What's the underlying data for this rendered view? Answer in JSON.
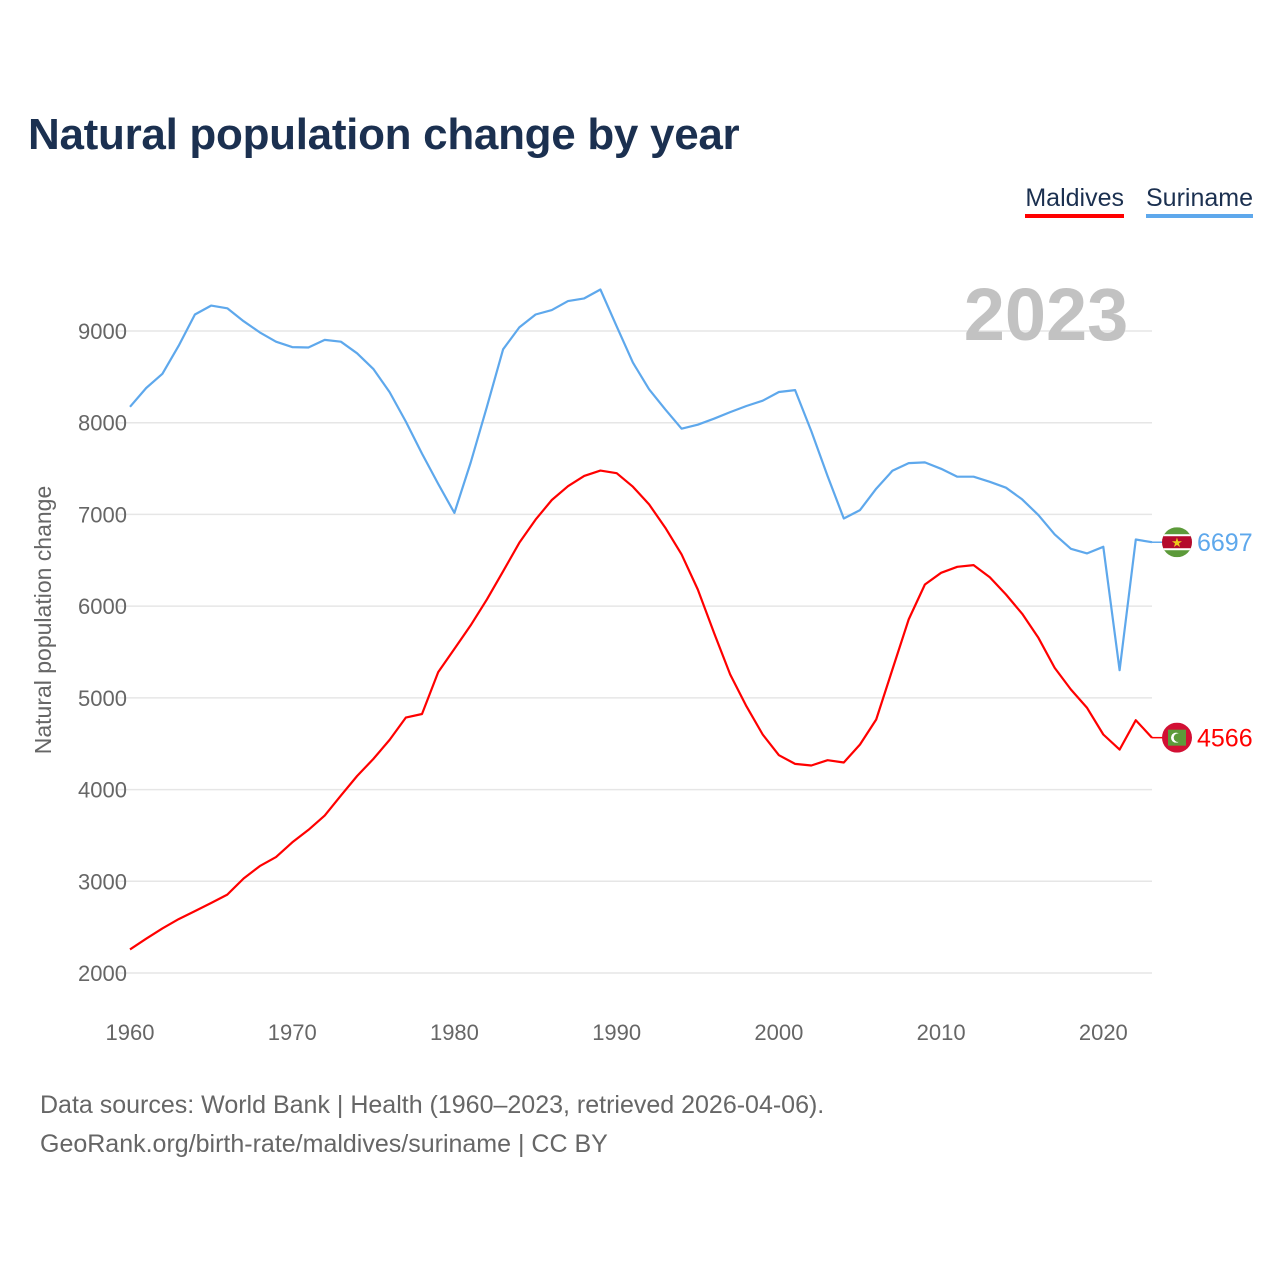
{
  "title": "Natural population change by year",
  "footer": {
    "line1": "Data sources: World Bank | Health (1960–2023, retrieved 2026-04-06).",
    "line2": "GeoRank.org/birth-rate/maldives/suriname | CC BY"
  },
  "chart_data": {
    "type": "line",
    "title": "Natural population change by year",
    "xlabel": "",
    "ylabel": "Natural population change",
    "year_label": "2023",
    "xlim": [
      1960,
      2023
    ],
    "ylim": [
      2000,
      9000
    ],
    "x_ticks": [
      1960,
      1970,
      1980,
      1990,
      2000,
      2010,
      2020
    ],
    "y_ticks": [
      2000,
      3000,
      4000,
      5000,
      6000,
      7000,
      8000,
      9000
    ],
    "grid": true,
    "legend_position": "top-right",
    "x": [
      1960,
      1961,
      1962,
      1963,
      1964,
      1965,
      1966,
      1967,
      1968,
      1969,
      1970,
      1971,
      1972,
      1973,
      1974,
      1975,
      1976,
      1977,
      1978,
      1979,
      1980,
      1981,
      1982,
      1983,
      1984,
      1985,
      1986,
      1987,
      1988,
      1989,
      1990,
      1991,
      1992,
      1993,
      1994,
      1995,
      1996,
      1997,
      1998,
      1999,
      2000,
      2001,
      2002,
      2003,
      2004,
      2005,
      2006,
      2007,
      2008,
      2009,
      2010,
      2011,
      2012,
      2013,
      2014,
      2015,
      2016,
      2017,
      2018,
      2019,
      2020,
      2021,
      2022,
      2023
    ],
    "series": [
      {
        "name": "Maldives",
        "color": "#ff0000",
        "end_label": "4566",
        "flag": "maldives-flag",
        "values": [
          2257,
          2374,
          2486,
          2588,
          2675,
          2763,
          2855,
          3030,
          3166,
          3264,
          3424,
          3560,
          3716,
          3934,
          4148,
          4333,
          4542,
          4785,
          4824,
          5281,
          5534,
          5791,
          6073,
          6380,
          6691,
          6944,
          7157,
          7308,
          7420,
          7478,
          7449,
          7302,
          7109,
          6855,
          6564,
          6182,
          5709,
          5255,
          4909,
          4600,
          4375,
          4280,
          4262,
          4320,
          4295,
          4491,
          4764,
          5309,
          5855,
          6236,
          6364,
          6429,
          6447,
          6316,
          6127,
          5916,
          5655,
          5327,
          5091,
          4891,
          4600,
          4436,
          4756,
          4566
        ]
      },
      {
        "name": "Suriname",
        "color": "#5ea8ec",
        "end_label": "6697",
        "flag": "suriname-flag",
        "values": [
          8173,
          8378,
          8533,
          8840,
          9180,
          9277,
          9248,
          9107,
          8985,
          8883,
          8825,
          8820,
          8903,
          8883,
          8757,
          8587,
          8334,
          8013,
          7663,
          7333,
          7017,
          7566,
          8173,
          8800,
          9039,
          9180,
          9228,
          9326,
          9355,
          9452,
          9050,
          8655,
          8364,
          8145,
          7935,
          7978,
          8044,
          8116,
          8182,
          8240,
          8335,
          8356,
          7909,
          7418,
          6956,
          7047,
          7280,
          7476,
          7560,
          7567,
          7498,
          7411,
          7411,
          7356,
          7291,
          7164,
          6993,
          6782,
          6625,
          6575,
          6647,
          5302,
          6727,
          6697
        ]
      }
    ]
  }
}
